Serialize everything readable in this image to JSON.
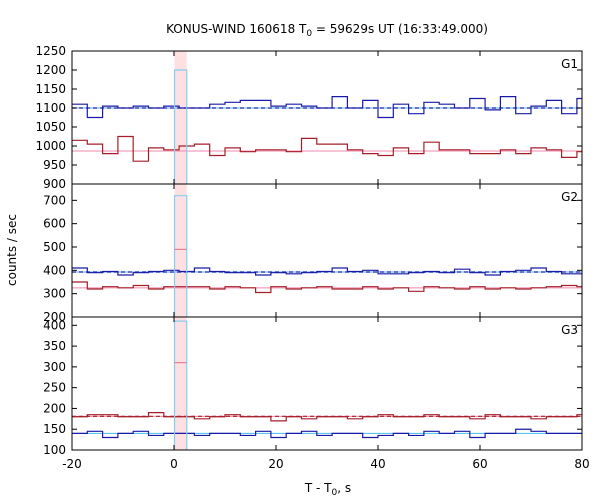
{
  "chart_data": {
    "type": "line",
    "title_main": "KONUS-WIND 160618 T",
    "title_sub": "0",
    "title_rest": " = 59629s UT (16:33:49.000)",
    "xlabel_main": "T - T",
    "xlabel_sub": "0",
    "xlabel_rest": ", s",
    "ylabel": "counts / sec",
    "xlim": [
      -20,
      80
    ],
    "xticks": [
      "-20",
      "0",
      "20",
      "40",
      "60",
      "80"
    ],
    "bin_edges": [
      -20,
      -17,
      -14,
      -11,
      -8,
      -5,
      -2,
      1,
      4,
      7,
      10,
      13,
      16,
      19,
      22,
      25,
      28,
      31,
      34,
      37,
      40,
      43,
      46,
      49,
      52,
      55,
      58,
      61,
      64,
      67,
      70,
      73,
      76,
      79,
      80
    ],
    "burst_interval": [
      0.1,
      2.5
    ],
    "panels": [
      {
        "name": "G1",
        "ylim": [
          900,
          1250
        ],
        "yticks": [
          "900",
          "950",
          "1000",
          "1050",
          "1100",
          "1150",
          "1200",
          "1250"
        ],
        "series": [
          {
            "name": "blue",
            "color": "#1a1aa8",
            "values": [
              1110,
              1075,
              1105,
              1100,
              1105,
              1100,
              1105,
              1100,
              1100,
              1110,
              1115,
              1120,
              1120,
              1105,
              1110,
              1105,
              1100,
              1130,
              1100,
              1120,
              1075,
              1110,
              1085,
              1115,
              1110,
              1100,
              1125,
              1095,
              1130,
              1085,
              1105,
              1120,
              1085,
              1125
            ]
          },
          {
            "name": "red",
            "color": "#a51f28",
            "values": [
              1015,
              1005,
              980,
              1025,
              960,
              995,
              990,
              1000,
              1005,
              975,
              995,
              985,
              990,
              990,
              985,
              1020,
              1005,
              1005,
              990,
              980,
              975,
              995,
              980,
              1010,
              990,
              990,
              980,
              980,
              990,
              980,
              995,
              990,
              970,
              985
            ]
          }
        ],
        "background": [
          {
            "name": "blue-bg",
            "color": "#44bbee",
            "value": 1100,
            "dashed_color": "#1a1aa8"
          },
          {
            "name": "red-bg",
            "color": "#ee88aa",
            "value": 987
          }
        ],
        "burst": {
          "color": "#88ccee",
          "value": 1200
        },
        "burst_marker": null
      },
      {
        "name": "G2",
        "ylim": [
          200,
          770
        ],
        "yticks": [
          "200",
          "300",
          "400",
          "500",
          "600",
          "700"
        ],
        "series": [
          {
            "name": "blue",
            "color": "#1a1aa8",
            "values": [
              410,
              390,
              395,
              380,
              390,
              395,
              400,
              395,
              410,
              395,
              390,
              390,
              380,
              390,
              385,
              390,
              395,
              410,
              395,
              400,
              385,
              385,
              390,
              395,
              390,
              405,
              390,
              380,
              395,
              400,
              410,
              395,
              385,
              385
            ]
          },
          {
            "name": "red",
            "color": "#a51f28",
            "values": [
              350,
              320,
              330,
              325,
              335,
              320,
              330,
              330,
              330,
              320,
              330,
              325,
              305,
              330,
              320,
              325,
              330,
              320,
              320,
              330,
              320,
              325,
              310,
              330,
              325,
              320,
              330,
              320,
              325,
              320,
              325,
              330,
              335,
              330
            ]
          }
        ],
        "background": [
          {
            "name": "blue-bg",
            "color": "#44bbee",
            "value": 393,
            "dashed_color": "#1a1aa8"
          },
          {
            "name": "red-bg",
            "color": "#ee88aa",
            "value": 325
          }
        ],
        "burst": {
          "color": "#88ccee",
          "value": 720
        },
        "burst_marker": {
          "color": "#e07080",
          "value": 490
        }
      },
      {
        "name": "G3",
        "ylim": [
          100,
          420
        ],
        "yticks": [
          "100",
          "150",
          "200",
          "250",
          "300",
          "350",
          "400"
        ],
        "series": [
          {
            "name": "blue",
            "color": "#1a1aa8",
            "values": [
              140,
              145,
              130,
              140,
              145,
              135,
              140,
              140,
              135,
              140,
              140,
              135,
              145,
              130,
              140,
              145,
              135,
              140,
              140,
              130,
              135,
              140,
              135,
              145,
              140,
              145,
              130,
              140,
              140,
              150,
              145,
              140,
              140,
              140
            ]
          },
          {
            "name": "red",
            "color": "#a51f28",
            "values": [
              180,
              185,
              185,
              180,
              180,
              190,
              180,
              180,
              175,
              180,
              185,
              180,
              180,
              170,
              180,
              175,
              180,
              180,
              175,
              180,
              185,
              180,
              180,
              185,
              180,
              180,
              175,
              185,
              180,
              180,
              175,
              180,
              180,
              185
            ]
          }
        ],
        "background": [
          {
            "name": "blue-bg",
            "color": "#44bbee",
            "value": 140
          },
          {
            "name": "red-bg",
            "color": "#ee88aa",
            "value": 181,
            "dashed_color": "#a51f28"
          }
        ],
        "burst": {
          "color": "#88ccee",
          "value": 410
        },
        "burst_marker": {
          "color": "#e07080",
          "value": 310
        }
      }
    ]
  }
}
